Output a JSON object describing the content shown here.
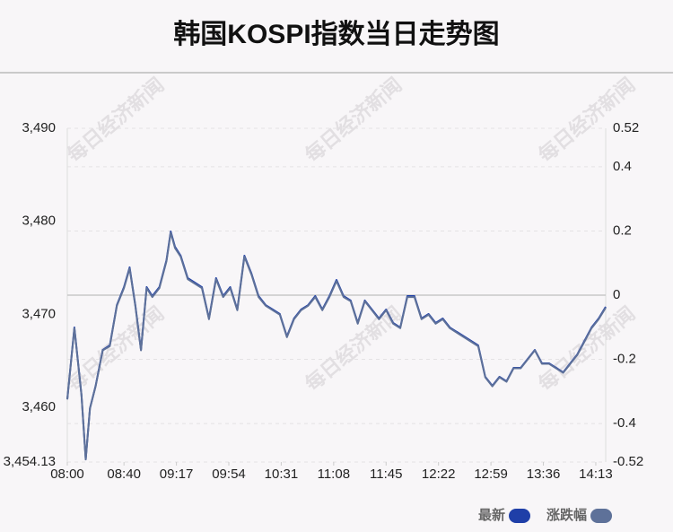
{
  "chart_data": {
    "type": "line",
    "title": "韩国KOSPI指数当日走势图",
    "watermark": "每日经济新闻",
    "x": [
      "08:00",
      "08:05",
      "08:10",
      "08:13",
      "08:16",
      "08:20",
      "08:25",
      "08:30",
      "08:35",
      "08:40",
      "08:44",
      "08:48",
      "08:52",
      "08:56",
      "09:00",
      "09:05",
      "09:10",
      "09:13",
      "09:16",
      "09:20",
      "09:25",
      "09:30",
      "09:35",
      "09:40",
      "09:45",
      "09:50",
      "09:55",
      "10:00",
      "10:05",
      "10:10",
      "10:15",
      "10:20",
      "10:25",
      "10:30",
      "10:35",
      "10:40",
      "10:45",
      "10:50",
      "10:55",
      "11:00",
      "11:05",
      "11:10",
      "11:15",
      "11:20",
      "11:25",
      "11:30",
      "11:35",
      "11:40",
      "11:45",
      "11:50",
      "11:55",
      "12:00",
      "12:05",
      "12:10",
      "12:15",
      "12:20",
      "12:25",
      "12:30",
      "12:35",
      "12:40",
      "12:45",
      "12:50",
      "12:55",
      "13:00",
      "13:05",
      "13:10",
      "13:15",
      "13:20",
      "13:25",
      "13:30",
      "13:35",
      "13:40",
      "13:45",
      "13:50",
      "13:55",
      "14:00",
      "14:05",
      "14:10",
      "14:15",
      "14:20"
    ],
    "series": [
      {
        "name": "最新",
        "color": "#1f3fa8",
        "axis": "y",
        "values": [
          3460.88,
          3468.59,
          3461.36,
          3454.42,
          3459.92,
          3462.33,
          3466.18,
          3466.67,
          3471.0,
          3472.93,
          3475.05,
          3471.0,
          3466.18,
          3472.93,
          3471.97,
          3472.93,
          3475.83,
          3478.91,
          3477.27,
          3476.31,
          3473.9,
          3473.42,
          3472.93,
          3469.56,
          3473.9,
          3471.97,
          3472.93,
          3470.52,
          3476.31,
          3474.38,
          3471.97,
          3471.0,
          3470.52,
          3470.04,
          3467.63,
          3469.56,
          3470.52,
          3471.0,
          3471.97,
          3470.52,
          3471.97,
          3473.7,
          3471.97,
          3471.49,
          3469.08,
          3471.49,
          3470.52,
          3469.56,
          3470.52,
          3469.08,
          3468.59,
          3471.97,
          3471.97,
          3469.56,
          3470.04,
          3469.08,
          3469.56,
          3468.59,
          3468.11,
          3467.63,
          3467.15,
          3466.67,
          3463.29,
          3462.33,
          3463.29,
          3462.81,
          3464.26,
          3464.26,
          3465.22,
          3466.18,
          3464.74,
          3464.74,
          3464.26,
          3463.77,
          3464.74,
          3465.7,
          3467.15,
          3468.59,
          3469.56,
          3470.81
        ]
      },
      {
        "name": "涨跌幅",
        "color": "#5e7199",
        "axis": "y2",
        "values": [
          -0.325,
          -0.103,
          -0.311,
          -0.512,
          -0.353,
          -0.284,
          -0.172,
          -0.159,
          -0.033,
          0.022,
          0.083,
          -0.033,
          -0.172,
          0.022,
          -0.006,
          0.022,
          0.106,
          0.195,
          0.147,
          0.12,
          0.05,
          0.036,
          0.022,
          -0.075,
          0.05,
          -0.006,
          0.022,
          -0.047,
          0.12,
          0.064,
          -0.006,
          -0.033,
          -0.047,
          -0.061,
          -0.131,
          -0.075,
          -0.047,
          -0.033,
          -0.006,
          -0.047,
          -0.006,
          0.044,
          -0.006,
          -0.019,
          -0.089,
          -0.019,
          -0.047,
          -0.075,
          -0.047,
          -0.089,
          -0.103,
          -0.006,
          -0.006,
          -0.075,
          -0.061,
          -0.089,
          -0.075,
          -0.103,
          -0.117,
          -0.131,
          -0.145,
          -0.159,
          -0.256,
          -0.284,
          -0.256,
          -0.27,
          -0.228,
          -0.228,
          -0.2,
          -0.172,
          -0.214,
          -0.214,
          -0.228,
          -0.242,
          -0.214,
          -0.186,
          -0.145,
          -0.103,
          -0.075,
          -0.039
        ]
      }
    ],
    "xlim": [
      "08:00",
      "14:20"
    ],
    "xticks": [
      "08:00",
      "08:40",
      "09:17",
      "09:54",
      "10:31",
      "11:08",
      "11:45",
      "12:22",
      "12:59",
      "13:36",
      "14:13"
    ],
    "ylim": [
      3454.13,
      3490
    ],
    "yticks": [
      {
        "value": 3454.13,
        "label": "3,454.13"
      },
      {
        "value": 3460,
        "label": "3,460"
      },
      {
        "value": 3470,
        "label": "3,470"
      },
      {
        "value": 3480,
        "label": "3,480"
      },
      {
        "value": 3490,
        "label": "3,490"
      }
    ],
    "y2lim": [
      -0.52,
      0.52
    ],
    "y2ticks": [
      -0.52,
      -0.4,
      -0.2,
      0,
      0.2,
      0.4,
      0.52
    ],
    "grid": true,
    "legend": "bottom-right"
  }
}
